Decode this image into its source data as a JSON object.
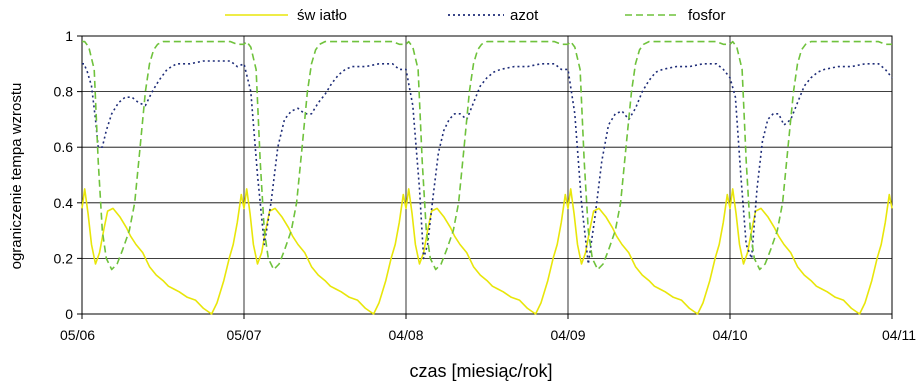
{
  "chart_data": {
    "type": "line",
    "xlabel": "czas [miesiąc/rok]",
    "ylabel": "ograniczenie tempa wzrostu",
    "ylim": [
      0,
      1
    ],
    "yticks": [
      "0",
      "0.2",
      "0.4",
      "0.6",
      "0.8",
      "1"
    ],
    "x_tick_labels": [
      "05/06",
      "05/07",
      "04/08",
      "04/09",
      "04/10",
      "04/11"
    ],
    "xlim": [
      0,
      60
    ],
    "grid": "horizontal and vertical at year boundaries",
    "legend_position": "top",
    "series": [
      {
        "name": "św iatło",
        "color": "#e8e60a",
        "dash": "solid",
        "x": [
          0.0,
          0.2,
          0.45,
          0.7,
          1.0,
          1.3,
          1.6,
          1.9,
          2.3,
          2.8,
          3.3,
          3.6,
          4.0,
          4.5,
          5.0,
          5.5,
          6.0,
          6.4,
          6.8,
          7.2,
          7.8,
          8.4,
          9.0,
          9.6,
          10.0,
          10.5,
          10.9,
          11.2,
          11.5,
          11.8,
          12.0
        ],
        "y": [
          0.38,
          0.45,
          0.36,
          0.25,
          0.18,
          0.22,
          0.3,
          0.37,
          0.38,
          0.35,
          0.31,
          0.28,
          0.25,
          0.22,
          0.17,
          0.14,
          0.12,
          0.1,
          0.09,
          0.08,
          0.06,
          0.05,
          0.02,
          0.0,
          0.04,
          0.12,
          0.2,
          0.25,
          0.33,
          0.43,
          0.38
        ],
        "period": 12,
        "cycles": 5
      },
      {
        "name": "azot",
        "color": "#1f2d78",
        "dash": "dotted",
        "x": [
          0.0,
          0.15,
          0.4,
          0.7,
          1.0,
          1.2,
          1.5,
          1.8,
          2.2,
          2.7,
          3.2,
          3.7,
          4.2,
          4.7,
          5.2,
          5.7,
          6.3,
          7.0,
          8.0,
          9.0,
          10.0,
          11.0,
          11.5,
          12.0
        ],
        "y": [
          0.9,
          0.9,
          0.87,
          0.82,
          0.7,
          0.6,
          0.6,
          0.66,
          0.72,
          0.76,
          0.78,
          0.78,
          0.76,
          0.75,
          0.8,
          0.84,
          0.88,
          0.9,
          0.9,
          0.91,
          0.91,
          0.91,
          0.89,
          0.9
        ],
        "overrides": [
          {
            "cycle": 1,
            "x": [
              0.0,
              0.5,
              1.0,
              1.5,
              2.0,
              2.5,
              3.0,
              3.5,
              4.0,
              4.5,
              5.0,
              5.5,
              6.0,
              6.5,
              7.0,
              7.5,
              8.0,
              9.0,
              10.0,
              11.0,
              11.5,
              12.0
            ],
            "y": [
              0.88,
              0.8,
              0.5,
              0.25,
              0.4,
              0.6,
              0.7,
              0.73,
              0.74,
              0.72,
              0.72,
              0.76,
              0.79,
              0.83,
              0.86,
              0.88,
              0.89,
              0.89,
              0.9,
              0.9,
              0.88,
              0.88
            ]
          },
          {
            "cycle": 2,
            "x": [
              0.0,
              0.5,
              1.0,
              1.3,
              1.6,
              2.0,
              2.4,
              2.8,
              3.2,
              3.6,
              4.0,
              4.5,
              5.0,
              5.5,
              6.0,
              6.5,
              7.0,
              8.0,
              9.0,
              10.0,
              11.0,
              11.5,
              12.0
            ],
            "y": [
              0.87,
              0.75,
              0.45,
              0.2,
              0.25,
              0.42,
              0.58,
              0.66,
              0.7,
              0.72,
              0.72,
              0.7,
              0.76,
              0.82,
              0.85,
              0.87,
              0.88,
              0.89,
              0.89,
              0.9,
              0.9,
              0.88,
              0.88
            ]
          },
          {
            "cycle": 3,
            "x": [
              0.0,
              0.5,
              1.0,
              1.5,
              2.0,
              2.5,
              3.0,
              3.5,
              4.0,
              4.5,
              5.0,
              5.5,
              6.0,
              6.5,
              7.0,
              8.0,
              9.0,
              10.0,
              11.0,
              11.5,
              12.0
            ],
            "y": [
              0.86,
              0.72,
              0.4,
              0.18,
              0.35,
              0.55,
              0.68,
              0.72,
              0.73,
              0.7,
              0.74,
              0.8,
              0.84,
              0.87,
              0.88,
              0.89,
              0.89,
              0.9,
              0.9,
              0.88,
              0.85
            ]
          },
          {
            "cycle": 4,
            "x": [
              0.0,
              0.4,
              0.8,
              1.2,
              1.6,
              2.0,
              2.4,
              2.8,
              3.2,
              3.6,
              4.0,
              4.5,
              5.0,
              5.5,
              6.0,
              6.5,
              7.0,
              8.0,
              9.0,
              10.0,
              11.0,
              11.5,
              12.0
            ],
            "y": [
              0.85,
              0.78,
              0.5,
              0.25,
              0.2,
              0.45,
              0.62,
              0.7,
              0.72,
              0.72,
              0.68,
              0.7,
              0.76,
              0.82,
              0.85,
              0.87,
              0.88,
              0.89,
              0.89,
              0.9,
              0.9,
              0.88,
              0.85
            ]
          }
        ]
      },
      {
        "name": "fosfor",
        "color": "#6fc23c",
        "dash": "dashed",
        "x": [
          0.0,
          0.2,
          0.5,
          0.9,
          1.2,
          1.5,
          1.8,
          2.2,
          2.6,
          3.0,
          3.5,
          3.9,
          4.3,
          4.7,
          5.0,
          5.3,
          5.6,
          6.0,
          6.5,
          7.0,
          8.0,
          9.0,
          10.0,
          11.0,
          11.5,
          12.0
        ],
        "y": [
          0.98,
          0.98,
          0.96,
          0.88,
          0.55,
          0.3,
          0.2,
          0.16,
          0.18,
          0.23,
          0.3,
          0.4,
          0.6,
          0.8,
          0.9,
          0.95,
          0.97,
          0.98,
          0.98,
          0.98,
          0.98,
          0.98,
          0.98,
          0.98,
          0.97,
          0.97
        ],
        "period": 12,
        "cycles": 5
      }
    ]
  }
}
